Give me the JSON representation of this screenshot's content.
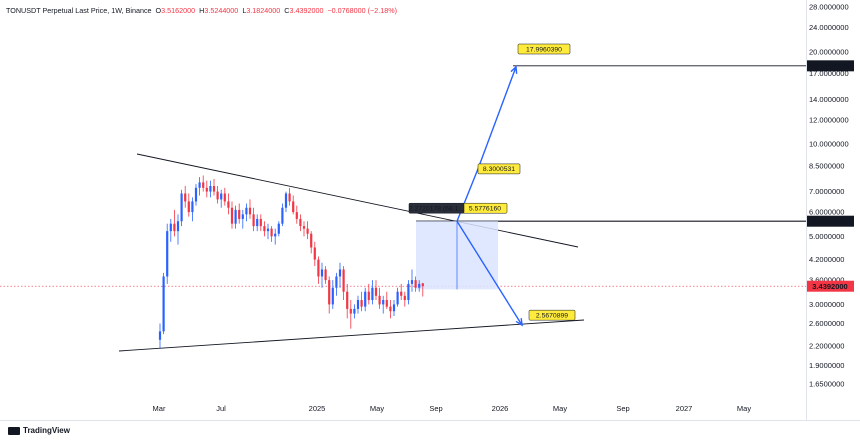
{
  "header": {
    "symbol": "TONUSDT Perpetual Last Price, 1W, Binance",
    "open_label": "O",
    "open": "3.5162000",
    "high_label": "H",
    "high": "3.5244000",
    "low_label": "L",
    "low": "3.1824000",
    "close_label": "C",
    "close": "3.4392000",
    "change": "−0.0768000 (−2.18%)"
  },
  "footer": {
    "brand": "TradingView"
  },
  "colors": {
    "up": "#2962ff",
    "down": "#f23645",
    "line": "#131722",
    "arrow": "#2962ff",
    "box": "#dbe4ff",
    "callout": "#ffeb3b"
  },
  "chart_data": {
    "type": "candlestick",
    "scale": "log",
    "ylim": [
      1.5,
      28.0
    ],
    "y_ticks": [
      "28.0000000",
      "24.0000000",
      "20.0000000",
      "17.0000000",
      "14.0000000",
      "12.0000000",
      "10.0000000",
      "8.5000000",
      "7.0000000",
      "6.0000000",
      "5.0000000",
      "4.2000000",
      "3.6000000",
      "3.0000000",
      "2.6000000",
      "2.2000000",
      "1.9000000",
      "1.6500000"
    ],
    "y_tick_values": [
      28,
      24,
      20,
      17,
      14,
      12,
      10,
      8.5,
      7,
      6,
      5,
      4.2,
      3.6,
      3,
      2.6,
      2.2,
      1.9,
      1.65
    ],
    "x_ticks": [
      "Mar",
      "Jul",
      "2025",
      "May",
      "Sep",
      "2026",
      "May",
      "Sep",
      "2027",
      "May"
    ],
    "last_price": "3.4392000",
    "last_price_value": 3.4392,
    "level_labels": [
      "18.0001415",
      "5.6037494"
    ],
    "level_values": [
      18.0001415,
      5.6037494
    ],
    "callouts": [
      "17.9960390",
      "8.3000531",
      "5.5776160",
      "2.5670899"
    ],
    "callout_values": [
      17.996039,
      8.3000531,
      5.577616,
      2.5670899
    ],
    "measure_label": "2.2720178 (68.1...",
    "candles": [
      {
        "o": 2.3,
        "h": 2.6,
        "l": 2.15,
        "c": 2.45
      },
      {
        "o": 2.45,
        "h": 3.8,
        "l": 2.4,
        "c": 3.7
      },
      {
        "o": 3.7,
        "h": 5.5,
        "l": 3.5,
        "c": 5.2
      },
      {
        "o": 5.2,
        "h": 5.7,
        "l": 4.8,
        "c": 5.5
      },
      {
        "o": 5.5,
        "h": 6.1,
        "l": 5.0,
        "c": 5.2
      },
      {
        "o": 5.2,
        "h": 5.9,
        "l": 4.7,
        "c": 5.6
      },
      {
        "o": 5.6,
        "h": 7.1,
        "l": 5.4,
        "c": 6.9
      },
      {
        "o": 6.9,
        "h": 7.3,
        "l": 6.2,
        "c": 6.5
      },
      {
        "o": 6.5,
        "h": 6.9,
        "l": 5.8,
        "c": 6.0
      },
      {
        "o": 6.0,
        "h": 6.7,
        "l": 5.6,
        "c": 6.5
      },
      {
        "o": 6.5,
        "h": 7.4,
        "l": 6.3,
        "c": 7.2
      },
      {
        "o": 7.2,
        "h": 7.8,
        "l": 6.8,
        "c": 7.5
      },
      {
        "o": 7.5,
        "h": 7.9,
        "l": 7.0,
        "c": 7.2
      },
      {
        "o": 7.2,
        "h": 7.6,
        "l": 6.7,
        "c": 7.0
      },
      {
        "o": 7.0,
        "h": 7.6,
        "l": 6.7,
        "c": 7.3
      },
      {
        "o": 7.3,
        "h": 7.7,
        "l": 6.8,
        "c": 7.0
      },
      {
        "o": 7.0,
        "h": 7.3,
        "l": 6.4,
        "c": 6.6
      },
      {
        "o": 6.6,
        "h": 7.1,
        "l": 6.2,
        "c": 6.9
      },
      {
        "o": 6.9,
        "h": 7.2,
        "l": 6.3,
        "c": 6.5
      },
      {
        "o": 6.5,
        "h": 6.9,
        "l": 5.9,
        "c": 6.2
      },
      {
        "o": 6.2,
        "h": 6.5,
        "l": 5.3,
        "c": 5.5
      },
      {
        "o": 5.5,
        "h": 6.3,
        "l": 5.3,
        "c": 6.1
      },
      {
        "o": 6.1,
        "h": 6.4,
        "l": 5.5,
        "c": 5.7
      },
      {
        "o": 5.7,
        "h": 6.1,
        "l": 5.3,
        "c": 5.9
      },
      {
        "o": 5.9,
        "h": 6.4,
        "l": 5.6,
        "c": 6.2
      },
      {
        "o": 6.2,
        "h": 6.6,
        "l": 5.7,
        "c": 5.9
      },
      {
        "o": 5.9,
        "h": 6.2,
        "l": 5.2,
        "c": 5.4
      },
      {
        "o": 5.4,
        "h": 5.9,
        "l": 5.2,
        "c": 5.7
      },
      {
        "o": 5.7,
        "h": 5.9,
        "l": 5.2,
        "c": 5.4
      },
      {
        "o": 5.4,
        "h": 5.6,
        "l": 5.0,
        "c": 5.2
      },
      {
        "o": 5.2,
        "h": 5.5,
        "l": 4.9,
        "c": 5.3
      },
      {
        "o": 5.3,
        "h": 5.4,
        "l": 4.8,
        "c": 5.0
      },
      {
        "o": 5.0,
        "h": 5.3,
        "l": 4.7,
        "c": 5.1
      },
      {
        "o": 5.1,
        "h": 5.6,
        "l": 5.0,
        "c": 5.5
      },
      {
        "o": 5.5,
        "h": 6.4,
        "l": 5.4,
        "c": 6.2
      },
      {
        "o": 6.2,
        "h": 7.0,
        "l": 6.0,
        "c": 6.9
      },
      {
        "o": 6.9,
        "h": 7.2,
        "l": 6.3,
        "c": 6.5
      },
      {
        "o": 6.5,
        "h": 6.8,
        "l": 5.9,
        "c": 6.0
      },
      {
        "o": 6.0,
        "h": 6.3,
        "l": 5.5,
        "c": 5.7
      },
      {
        "o": 5.7,
        "h": 5.9,
        "l": 5.2,
        "c": 5.4
      },
      {
        "o": 5.4,
        "h": 5.6,
        "l": 5.0,
        "c": 5.3
      },
      {
        "o": 5.3,
        "h": 5.6,
        "l": 4.9,
        "c": 5.1
      },
      {
        "o": 5.1,
        "h": 5.2,
        "l": 4.4,
        "c": 4.6
      },
      {
        "o": 4.6,
        "h": 4.8,
        "l": 4.0,
        "c": 4.2
      },
      {
        "o": 4.2,
        "h": 4.3,
        "l": 3.5,
        "c": 3.7
      },
      {
        "o": 3.7,
        "h": 4.1,
        "l": 3.4,
        "c": 3.9
      },
      {
        "o": 3.9,
        "h": 4.0,
        "l": 3.5,
        "c": 3.6
      },
      {
        "o": 3.6,
        "h": 3.7,
        "l": 2.8,
        "c": 3.0
      },
      {
        "o": 3.0,
        "h": 3.6,
        "l": 2.9,
        "c": 3.4
      },
      {
        "o": 3.4,
        "h": 3.8,
        "l": 3.2,
        "c": 3.7
      },
      {
        "o": 3.7,
        "h": 4.1,
        "l": 3.4,
        "c": 3.9
      },
      {
        "o": 3.9,
        "h": 4.0,
        "l": 3.1,
        "c": 3.3
      },
      {
        "o": 3.3,
        "h": 3.5,
        "l": 2.7,
        "c": 2.9
      },
      {
        "o": 2.9,
        "h": 3.1,
        "l": 2.5,
        "c": 2.8
      },
      {
        "o": 2.8,
        "h": 3.0,
        "l": 2.7,
        "c": 2.9
      },
      {
        "o": 2.9,
        "h": 3.2,
        "l": 2.8,
        "c": 3.1
      },
      {
        "o": 3.1,
        "h": 3.3,
        "l": 2.85,
        "c": 2.95
      },
      {
        "o": 2.95,
        "h": 3.4,
        "l": 2.85,
        "c": 3.3
      },
      {
        "o": 3.3,
        "h": 3.5,
        "l": 3.0,
        "c": 3.1
      },
      {
        "o": 3.1,
        "h": 3.6,
        "l": 3.0,
        "c": 3.4
      },
      {
        "o": 3.4,
        "h": 3.6,
        "l": 3.1,
        "c": 3.2
      },
      {
        "o": 3.2,
        "h": 3.4,
        "l": 2.9,
        "c": 3.0
      },
      {
        "o": 3.0,
        "h": 3.2,
        "l": 2.8,
        "c": 3.1
      },
      {
        "o": 3.1,
        "h": 3.3,
        "l": 2.9,
        "c": 2.95
      },
      {
        "o": 2.95,
        "h": 3.1,
        "l": 2.7,
        "c": 2.85
      },
      {
        "o": 2.85,
        "h": 3.1,
        "l": 2.75,
        "c": 3.0
      },
      {
        "o": 3.0,
        "h": 3.4,
        "l": 2.95,
        "c": 3.3
      },
      {
        "o": 3.3,
        "h": 3.5,
        "l": 3.1,
        "c": 3.2
      },
      {
        "o": 3.2,
        "h": 3.3,
        "l": 2.95,
        "c": 3.1
      },
      {
        "o": 3.1,
        "h": 3.6,
        "l": 3.0,
        "c": 3.5
      },
      {
        "o": 3.5,
        "h": 3.9,
        "l": 3.3,
        "c": 3.6
      },
      {
        "o": 3.6,
        "h": 3.7,
        "l": 3.3,
        "c": 3.4
      },
      {
        "o": 3.4,
        "h": 3.6,
        "l": 3.3,
        "c": 3.5
      },
      {
        "o": 3.5162,
        "h": 3.5244,
        "l": 3.1824,
        "c": 3.4392
      }
    ]
  }
}
